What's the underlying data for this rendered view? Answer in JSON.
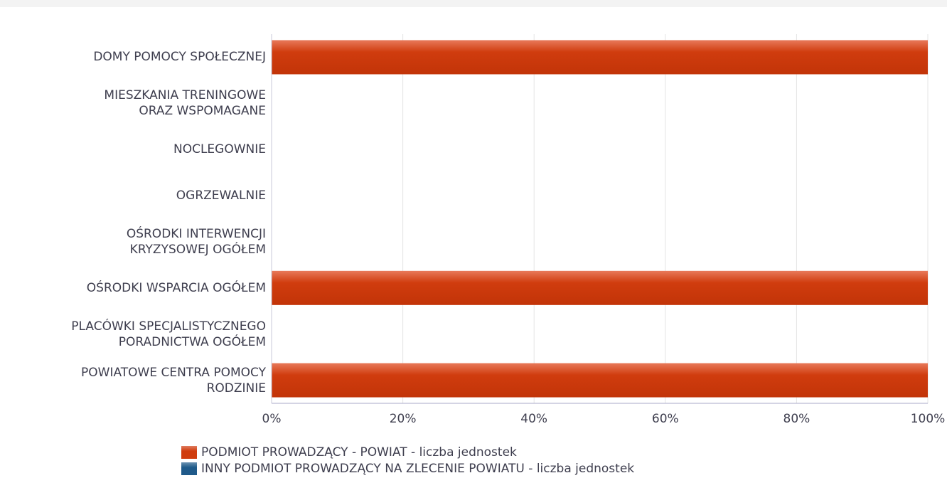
{
  "chart_data": {
    "type": "stacked-bar-horizontal",
    "categories": [
      "DOMY POMOCY SPOŁECZNEJ",
      "MIESZKANIA TRENINGOWE\nORAZ WSPOMAGANE",
      "NOCLEGOWNIE",
      "OGRZEWALNIE",
      "OŚRODKI INTERWENCJI\nKRYZYSOWEJ OGÓŁEM",
      "OŚRODKI WSPARCIA OGÓŁEM",
      "PLACÓWKI SPECJALISTYCZNEGO\nPORADNICTWA OGÓŁEM",
      "POWIATOWE CENTRA POMOCY\nRODZINIE"
    ],
    "series": [
      {
        "name": "PODMIOT PROWADZĄCY - POWIAT - liczba jednostek",
        "color": "#d03c0e",
        "values": [
          100,
          0,
          0,
          0,
          0,
          100,
          0,
          100
        ]
      },
      {
        "name": "INNY PODMIOT PROWADZĄCY NA ZLECENIE POWIATU - liczba jednostek",
        "color": "#1f5a8a",
        "values": [
          0,
          0,
          0,
          0,
          0,
          0,
          0,
          0
        ]
      }
    ],
    "xlim": [
      0,
      100
    ],
    "xticks": [
      {
        "value": 0,
        "label": "0%"
      },
      {
        "value": 20,
        "label": "20%"
      },
      {
        "value": 40,
        "label": "40%"
      },
      {
        "value": 60,
        "label": "60%"
      },
      {
        "value": 80,
        "label": "80%"
      },
      {
        "value": 100,
        "label": "100%"
      }
    ],
    "grid": true
  }
}
